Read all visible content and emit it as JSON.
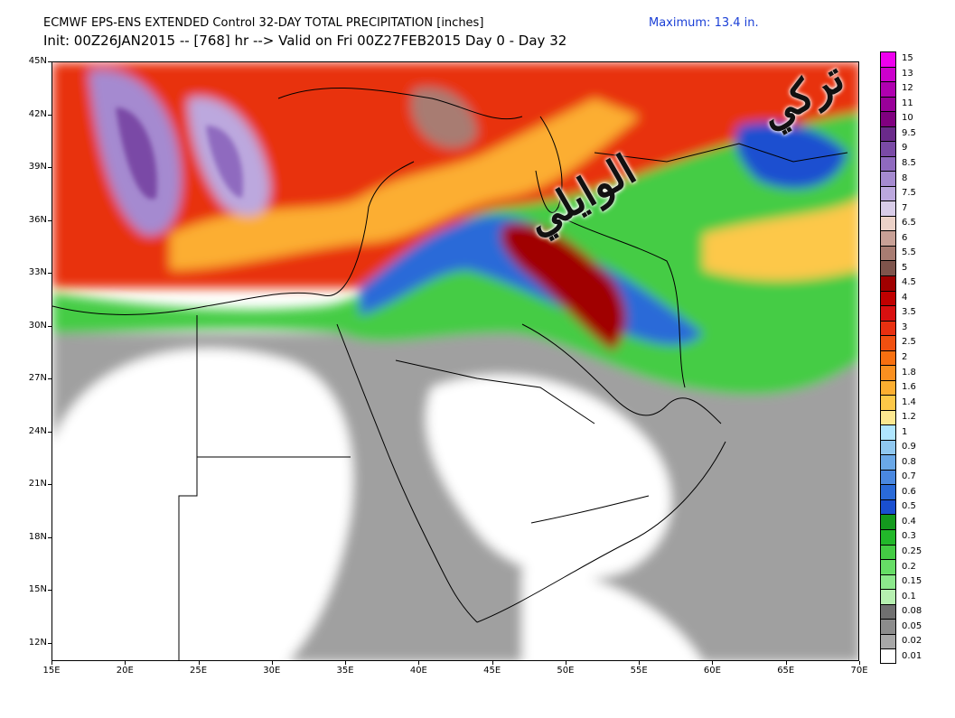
{
  "header": {
    "title_line1": "ECMWF EPS-ENS EXTENDED Control 32-DAY TOTAL PRECIPITATION [inches]",
    "title_line2": "Init: 00Z26JAN2015 -- [768] hr --> Valid on Fri 00Z27FEB2015  Day 0 - Day 32",
    "maximum": "Maximum:  13.4 in."
  },
  "axes": {
    "lat_labels": [
      "45N",
      "42N",
      "39N",
      "36N",
      "33N",
      "30N",
      "27N",
      "24N",
      "21N",
      "18N",
      "15N",
      "12N"
    ],
    "lon_labels": [
      "15E",
      "20E",
      "25E",
      "30E",
      "35E",
      "40E",
      "45E",
      "50E",
      "55E",
      "60E",
      "65E",
      "70E"
    ]
  },
  "colorbar": {
    "levels": [
      "15",
      "13",
      "12",
      "11",
      "10",
      "9.5",
      "9",
      "8.5",
      "8",
      "7.5",
      "7",
      "6.5",
      "6",
      "5.5",
      "5",
      "4.5",
      "4",
      "3.5",
      "3",
      "2.5",
      "2",
      "1.8",
      "1.6",
      "1.4",
      "1.2",
      "1",
      "0.9",
      "0.8",
      "0.7",
      "0.6",
      "0.5",
      "0.4",
      "0.3",
      "0.25",
      "0.2",
      "0.15",
      "0.1",
      "0.08",
      "0.05",
      "0.02",
      "0.01"
    ],
    "colors": [
      "#ee00ee",
      "#cc00cc",
      "#b000b0",
      "#990099",
      "#800080",
      "#6a2a8a",
      "#7a4aa6",
      "#8f6abf",
      "#a58ad0",
      "#bca8de",
      "#d8cce8",
      "#ecd2c8",
      "#c8a096",
      "#a87c72",
      "#7e544c",
      "#a00000",
      "#c00000",
      "#d81010",
      "#e83010",
      "#f05010",
      "#f87010",
      "#fa9020",
      "#fcae30",
      "#fdc848",
      "#fde890",
      "#b0e6ff",
      "#90c8f0",
      "#6aa8e8",
      "#4a88e0",
      "#2a6ad8",
      "#1a4fd0",
      "#149a1e",
      "#22b82a",
      "#44cc44",
      "#66dd66",
      "#8ce88c",
      "#b6f0b0",
      "#707070",
      "#8c8c8c",
      "#a8a8a8",
      "#ffffff"
    ]
  },
  "watermark": {
    "text_line1": "تركي",
    "text_line2": "الوايلي"
  }
}
